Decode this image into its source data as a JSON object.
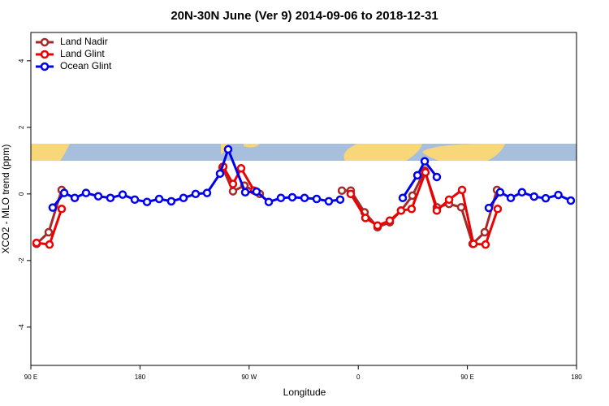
{
  "chart_data": {
    "type": "line",
    "title": "20N-30N June (Ver 9)   2014-09-06 to 2018-12-31",
    "x_label": "Longitude",
    "y_label": "XCO2 - MLO trend (ppm)",
    "xlim": [
      90,
      540
    ],
    "ylim": [
      -5.15,
      4.85
    ],
    "xticks": [
      {
        "value": 90,
        "label": "90 E"
      },
      {
        "value": 180,
        "label": "180"
      },
      {
        "value": 270,
        "label": "90 W"
      },
      {
        "value": 360,
        "label": "0"
      },
      {
        "value": 450,
        "label": "90 E"
      },
      {
        "value": 540,
        "label": "180"
      }
    ],
    "yticks": [
      -4,
      -2,
      0,
      2,
      4
    ],
    "legend": "top-left",
    "series": [
      {
        "name": "Land Nadir",
        "color": "#a52a2a",
        "x": [
          94.7,
          104.7,
          115.4,
          null,
          248,
          256.7,
          266.1,
          278.8,
          null,
          346.5,
          353.8,
          365.2,
          375.9,
          386,
          395.3,
          404.7,
          414.8,
          424.8,
          434.9,
          444.9,
          454.3,
          464.3,
          474.4
        ],
        "values": [
          -1.5,
          -1.15,
          0.12,
          null,
          0.8,
          0.08,
          0.25,
          0.0,
          null,
          0.1,
          0.1,
          -0.55,
          -1.0,
          -0.85,
          -0.5,
          -0.05,
          0.7,
          -0.4,
          -0.3,
          -0.4,
          -1.5,
          -1.15,
          0.12
        ]
      },
      {
        "name": "Land Glint",
        "color": "#ee0000",
        "x": [
          94.7,
          105.4,
          115.4,
          null,
          248.7,
          256.7,
          263.4,
          274.1,
          null,
          353.8,
          365.9,
          375.9,
          386,
          395.3,
          404,
          415.4,
          424.8,
          434.9,
          445.6,
          455,
          465,
          475
        ],
        "values": [
          -1.47,
          -1.52,
          -0.45,
          null,
          0.82,
          0.3,
          0.77,
          0.1,
          null,
          0.0,
          -0.72,
          -0.95,
          -0.8,
          -0.5,
          -0.45,
          0.65,
          -0.5,
          -0.17,
          0.12,
          -1.5,
          -1.52,
          -0.45
        ]
      },
      {
        "name": "Ocean Glint",
        "color": "#0000ee",
        "x": [
          108,
          117.5,
          126.2,
          135.5,
          145.6,
          155.6,
          165.7,
          175.7,
          185.8,
          195.8,
          205.8,
          215.9,
          225.9,
          235.3,
          246,
          252.7,
          266.8,
          276.1,
          286.2,
          296.2,
          305.6,
          315.7,
          325.7,
          335.7,
          345.1,
          null,
          396.7,
          408.8,
          414.8,
          424.8,
          null,
          467.7,
          477,
          485.8,
          495,
          505,
          514.6,
          525,
          535.3
        ],
        "values": [
          -0.41,
          0.03,
          -0.12,
          0.03,
          -0.07,
          -0.12,
          -0.02,
          -0.17,
          -0.24,
          -0.15,
          -0.22,
          -0.12,
          0.0,
          0.03,
          0.61,
          1.34,
          0.05,
          0.07,
          -0.24,
          -0.12,
          -0.1,
          -0.12,
          -0.15,
          -0.22,
          -0.17,
          null,
          -0.12,
          0.56,
          0.98,
          0.51,
          null,
          -0.42,
          0.05,
          -0.12,
          0.05,
          -0.08,
          -0.13,
          -0.03,
          -0.2
        ]
      }
    ]
  }
}
